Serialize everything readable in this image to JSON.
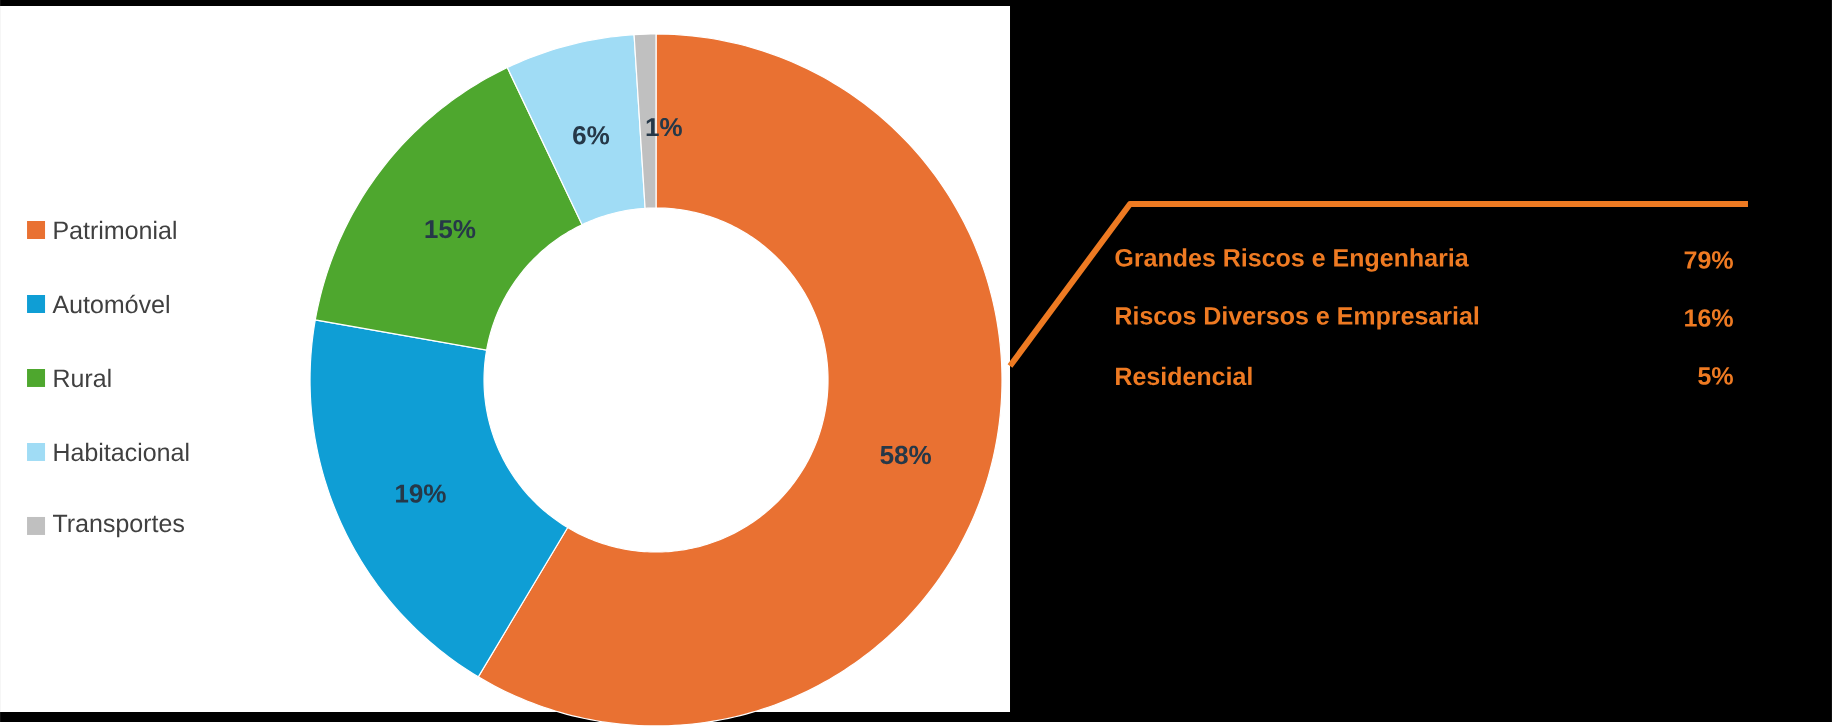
{
  "chart_data": [
    {
      "type": "donut",
      "categories": [
        "Patrimonial",
        "Automóvel",
        "Rural",
        "Habitacional",
        "Transportes"
      ],
      "values": [
        58,
        19,
        15,
        6,
        1
      ],
      "colors": [
        "#e97132",
        "#0f9ed5",
        "#4ea72e",
        "#a0dcf5",
        "#c0c0c0"
      ],
      "value_labels": [
        "58%",
        "19%",
        "15%",
        "6%",
        "1%"
      ],
      "legend": "left"
    },
    {
      "type": "other",
      "categories": [
        "Grandes Riscos e Engenharia",
        "Riscos Diversos e Empresarial",
        "Residencial"
      ],
      "values": [
        79,
        16,
        5
      ],
      "value_labels": [
        "79%",
        "16%",
        "5%"
      ],
      "color": "#ee7a22"
    }
  ]
}
